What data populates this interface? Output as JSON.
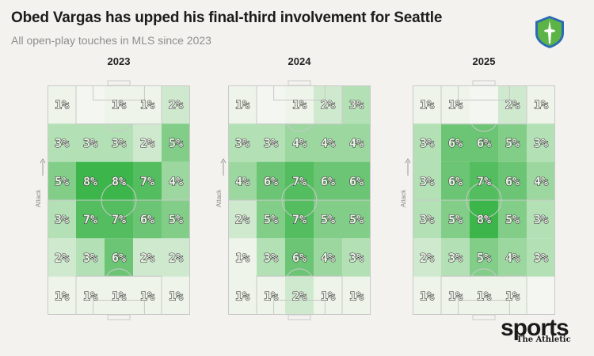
{
  "header": {
    "title": "Obed Vargas has upped his final-third involvement for Seattle",
    "subtitle": "All open-play touches in MLS since 2023"
  },
  "branding": {
    "main": "sports",
    "sub": "The Athletic",
    "club_logo": "seattle-sounders-crest-icon"
  },
  "axis_note": "Attack",
  "colors": {
    "low": "#eef4ea",
    "high": "#3cb54a",
    "lines": "#c9c9c9",
    "empty": "#f4f6f1"
  },
  "chart_data": {
    "type": "heatmap",
    "title": "Obed Vargas has upped his final-third involvement for Seattle",
    "subtitle": "All open-play touches in MLS since 2023",
    "orientation": "Attack is toward the top of each pitch",
    "grid": {
      "rows": 6,
      "cols": 5
    },
    "panels": [
      {
        "year": "2023",
        "values": [
          [
            1,
            null,
            1,
            1,
            2
          ],
          [
            3,
            3,
            3,
            2,
            5
          ],
          [
            5,
            8,
            8,
            7,
            4
          ],
          [
            3,
            7,
            7,
            6,
            5
          ],
          [
            2,
            3,
            6,
            2,
            2
          ],
          [
            1,
            1,
            1,
            1,
            1
          ]
        ]
      },
      {
        "year": "2024",
        "values": [
          [
            1,
            null,
            1,
            2,
            3
          ],
          [
            3,
            3,
            4,
            4,
            4
          ],
          [
            4,
            6,
            7,
            6,
            6
          ],
          [
            2,
            5,
            7,
            5,
            5
          ],
          [
            1,
            3,
            6,
            4,
            3
          ],
          [
            1,
            1,
            2,
            1,
            1
          ]
        ]
      },
      {
        "year": "2025",
        "values": [
          [
            1,
            1,
            null,
            2,
            1
          ],
          [
            3,
            6,
            6,
            5,
            3
          ],
          [
            3,
            6,
            7,
            6,
            4
          ],
          [
            3,
            5,
            8,
            5,
            3
          ],
          [
            2,
            3,
            5,
            4,
            3
          ],
          [
            1,
            1,
            1,
            1,
            null
          ]
        ]
      }
    ]
  }
}
